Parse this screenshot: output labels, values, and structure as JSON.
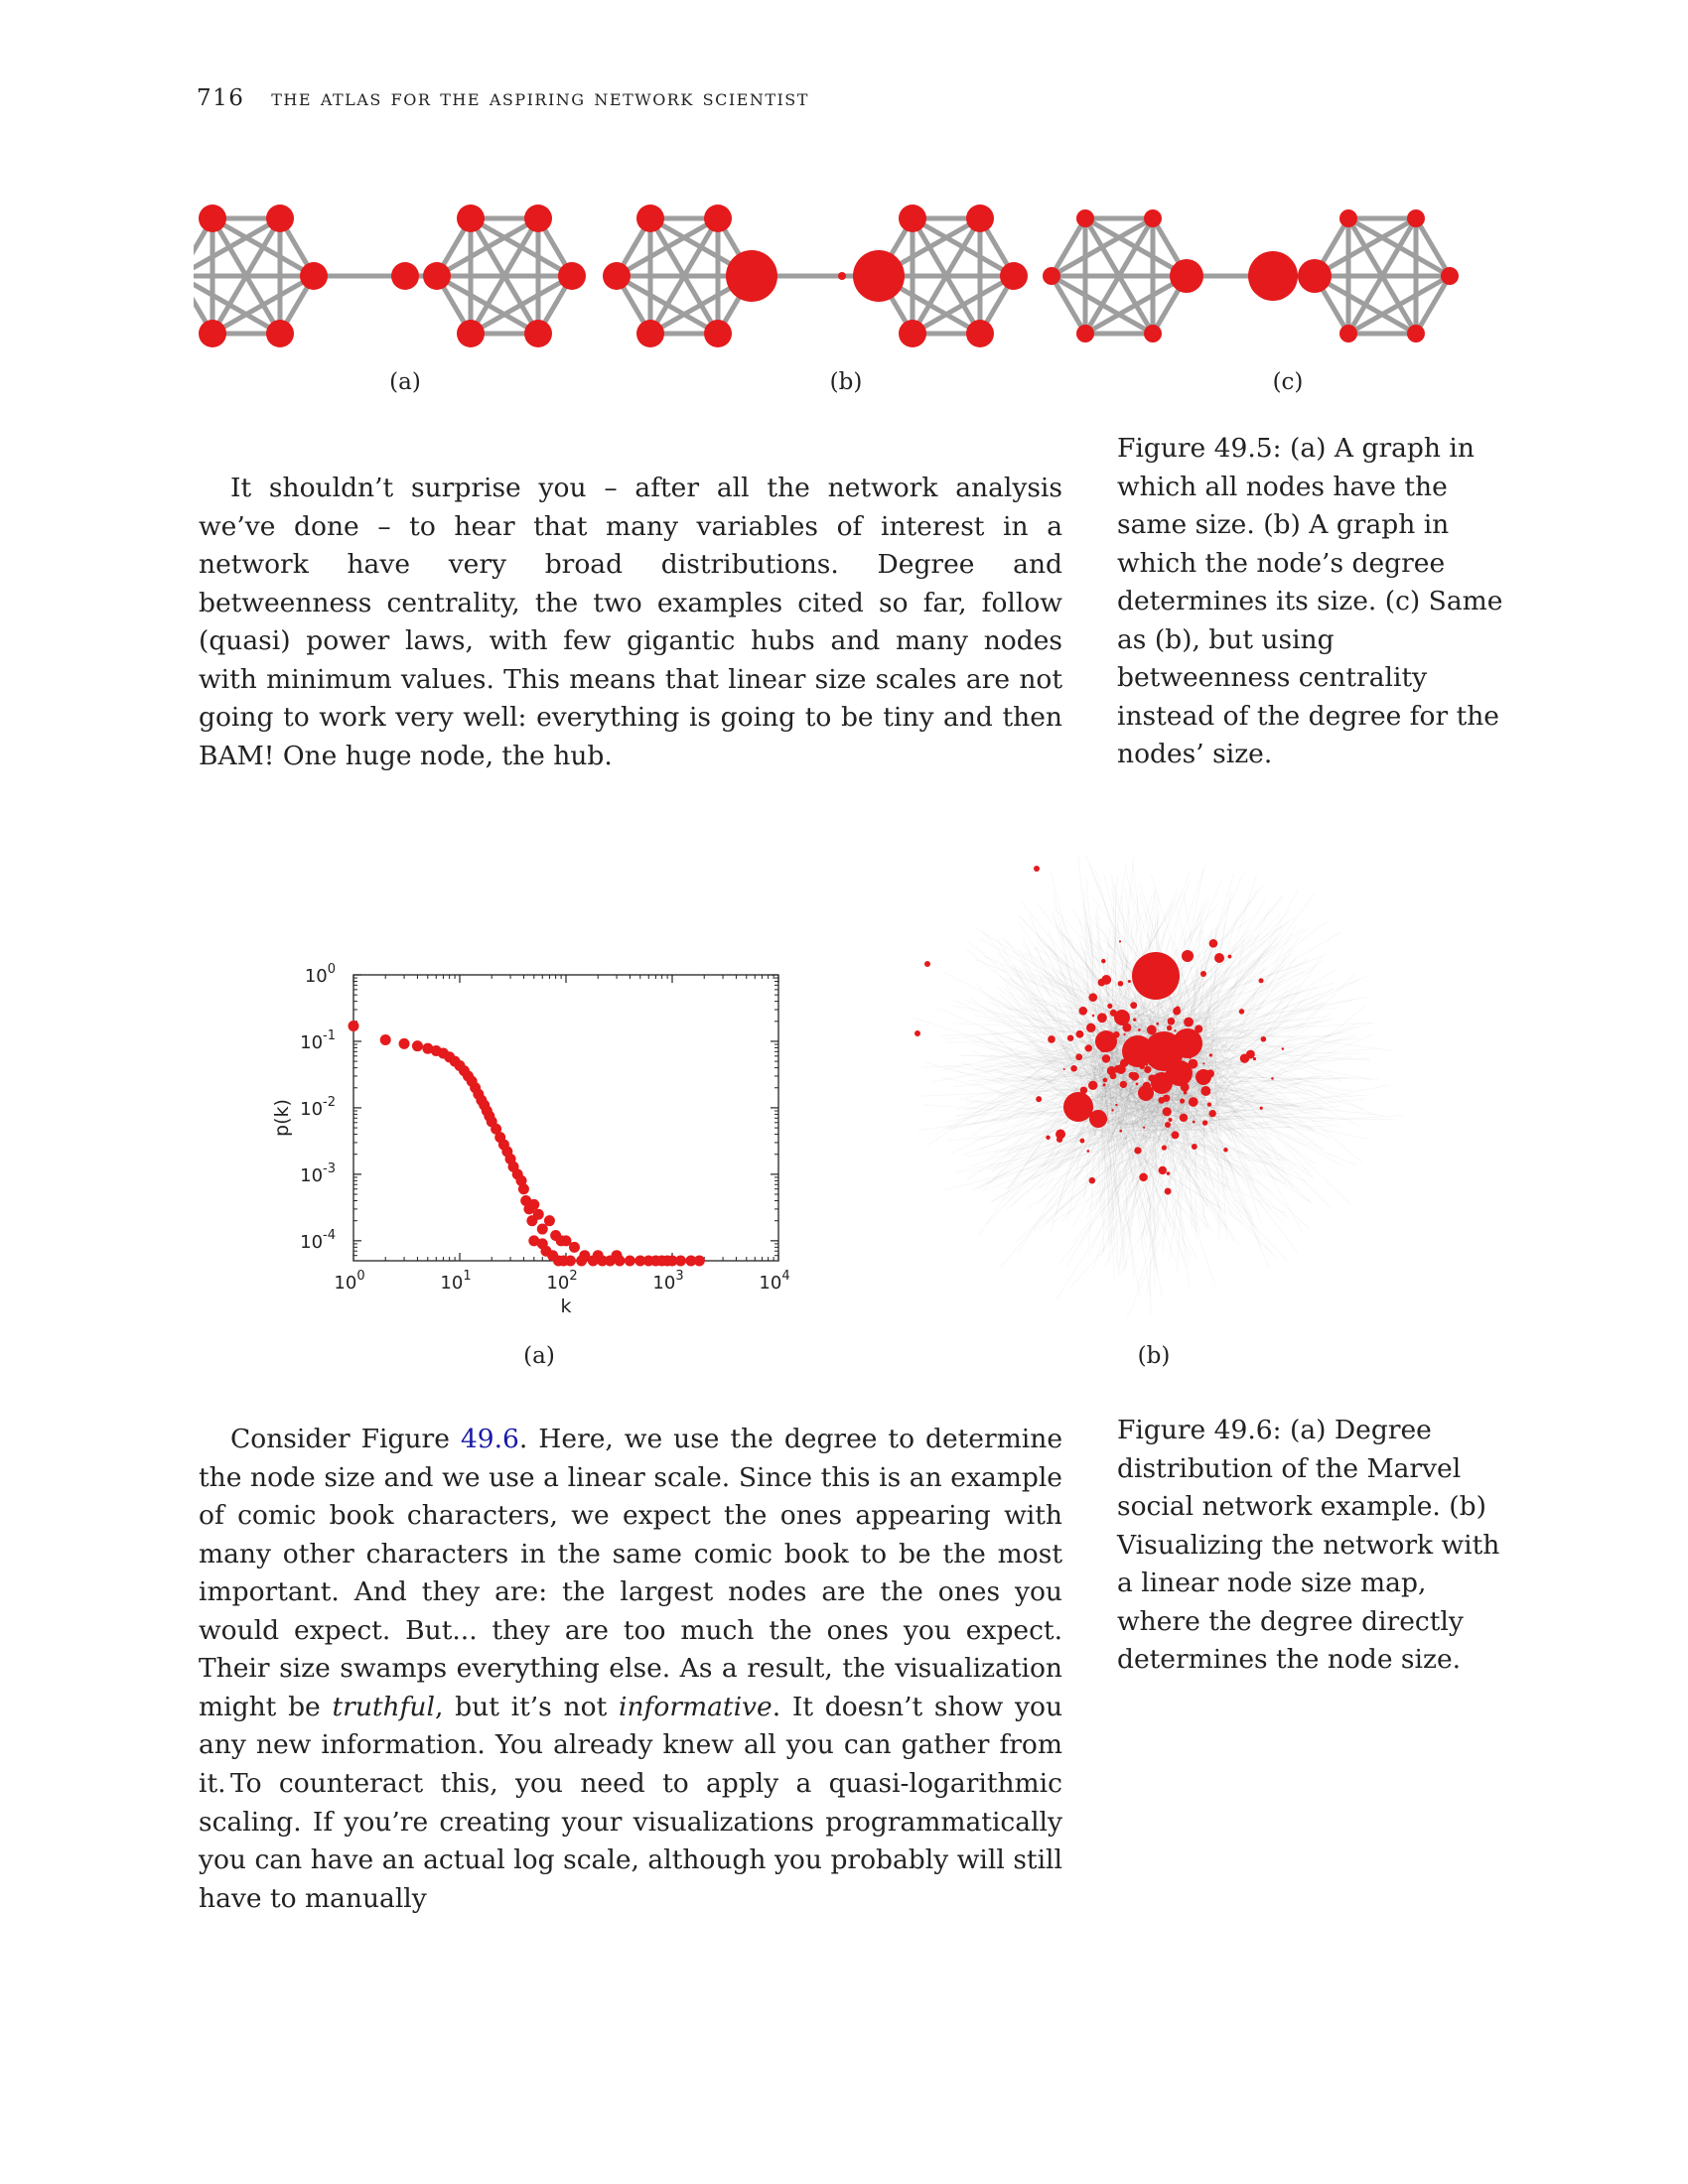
{
  "header": {
    "page_number": "716",
    "running_title": "the atlas for the aspiring network scientist"
  },
  "figure_49_5": {
    "panel_labels": [
      "(a)",
      "(b)",
      "(c)"
    ],
    "caption": "Figure 49.5: (a) A graph in which all nodes have the same size. (b) A graph in which the node’s degree determines its size. (c) Same as (b), but using betweenness centrality instead of the degree for the nodes’ size.",
    "node_color": "#e41a1c",
    "edge_color": "#9e9e9e"
  },
  "paragraph_1": "It shouldn’t surprise you – after all the network analysis we’ve done – to hear that many variables of interest in a network have very broad distributions. Degree and betweenness centrality, the two examples cited so far, follow (quasi) power laws, with few gigantic hubs and many nodes with minimum values. This means that linear size scales are not going to work very well: everything is going to be tiny and then BAM! One huge node, the hub.",
  "figure_49_6": {
    "panel_labels": [
      "(a)",
      "(b)"
    ],
    "caption": "Figure 49.6: (a) Degree distribution of the Marvel social network example. (b) Visualizing the network with a linear node size map, where the degree directly determines the node size."
  },
  "chart_data": {
    "type": "scatter",
    "xlabel": "k",
    "ylabel": "p(k)",
    "x_scale": "log",
    "y_scale": "log",
    "xlim": [
      1,
      10000
    ],
    "ylim": [
      5e-05,
      1
    ],
    "x_ticks": [
      "10^0",
      "10^1",
      "10^2",
      "10^3",
      "10^4"
    ],
    "y_ticks": [
      "10^0",
      "10^-1",
      "10^-2",
      "10^-3",
      "10^-4"
    ],
    "color": "#e41a1c",
    "points": [
      [
        1,
        0.17
      ],
      [
        2,
        0.105
      ],
      [
        3,
        0.092
      ],
      [
        4,
        0.085
      ],
      [
        5,
        0.078
      ],
      [
        6,
        0.072
      ],
      [
        7,
        0.066
      ],
      [
        8,
        0.058
      ],
      [
        9,
        0.05
      ],
      [
        10,
        0.043
      ],
      [
        11,
        0.036
      ],
      [
        12,
        0.03
      ],
      [
        13,
        0.025
      ],
      [
        14,
        0.02
      ],
      [
        15,
        0.016
      ],
      [
        16,
        0.013
      ],
      [
        17,
        0.011
      ],
      [
        18,
        0.009
      ],
      [
        19,
        0.0075
      ],
      [
        20,
        0.0062
      ],
      [
        22,
        0.0048
      ],
      [
        24,
        0.0036
      ],
      [
        26,
        0.0028
      ],
      [
        28,
        0.0022
      ],
      [
        30,
        0.0017
      ],
      [
        32,
        0.0013
      ],
      [
        35,
        0.001
      ],
      [
        38,
        0.0008
      ],
      [
        40,
        0.0006
      ],
      [
        42,
        0.0004
      ],
      [
        45,
        0.0003
      ],
      [
        48,
        0.0002
      ],
      [
        50,
        0.00035
      ],
      [
        55,
        0.00025
      ],
      [
        60,
        0.00015
      ],
      [
        70,
        0.0002
      ],
      [
        80,
        0.00012
      ],
      [
        90,
        0.0001
      ],
      [
        100,
        0.0001
      ],
      [
        120,
        8e-05
      ],
      [
        150,
        6e-05
      ],
      [
        200,
        6e-05
      ],
      [
        300,
        6e-05
      ],
      [
        50,
        0.0001
      ],
      [
        60,
        9e-05
      ],
      [
        65,
        7e-05
      ],
      [
        75,
        6e-05
      ],
      [
        85,
        5e-05
      ],
      [
        95,
        5e-05
      ],
      [
        110,
        5e-05
      ],
      [
        140,
        5e-05
      ],
      [
        180,
        5e-05
      ],
      [
        220,
        5e-05
      ],
      [
        260,
        5e-05
      ],
      [
        320,
        5e-05
      ],
      [
        400,
        5e-05
      ],
      [
        500,
        5e-05
      ],
      [
        600,
        5e-05
      ],
      [
        700,
        5e-05
      ],
      [
        800,
        5e-05
      ],
      [
        900,
        5e-05
      ],
      [
        1000,
        5e-05
      ],
      [
        1200,
        5e-05
      ],
      [
        1500,
        5e-05
      ],
      [
        1800,
        5e-05
      ]
    ]
  },
  "paragraph_2": "Consider Figure 49.6. Here, we use the degree to determine the node size and we use a linear scale. Since this is an example of comic book characters, we expect the ones appearing with many other characters in the same comic book to be the most important. And they are: the largest nodes are the ones you would expect. But... they are too much the ones you expect. Their size swamps everything else. As a result, the visualization might be truthful, but it’s not informative. It doesn’t show you any new information. You already knew all you can gather from it.",
  "paragraph_2_parts": {
    "pre_ref": "Consider Figure ",
    "ref": "49.6",
    "post_ref": ". Here, we use the degree to determine the node size and we use a linear scale. Since this is an example of comic book characters, we expect the ones appearing with many other characters in the same comic book to be the most important. And they are: the largest nodes are the ones you would expect. But... they are too much the ones you expect. Their size swamps everything else. As a result, the visualization might be ",
    "em1": "truthful",
    "mid": ", but it’s not ",
    "em2": "informative",
    "end": ". It doesn’t show you any new information. You already knew all you can gather from it."
  },
  "paragraph_3": "To counteract this, you need to apply a quasi-logarithmic scaling. If you’re creating your visualizations programmatically you can have an actual log scale, although you probably will still have to manually"
}
